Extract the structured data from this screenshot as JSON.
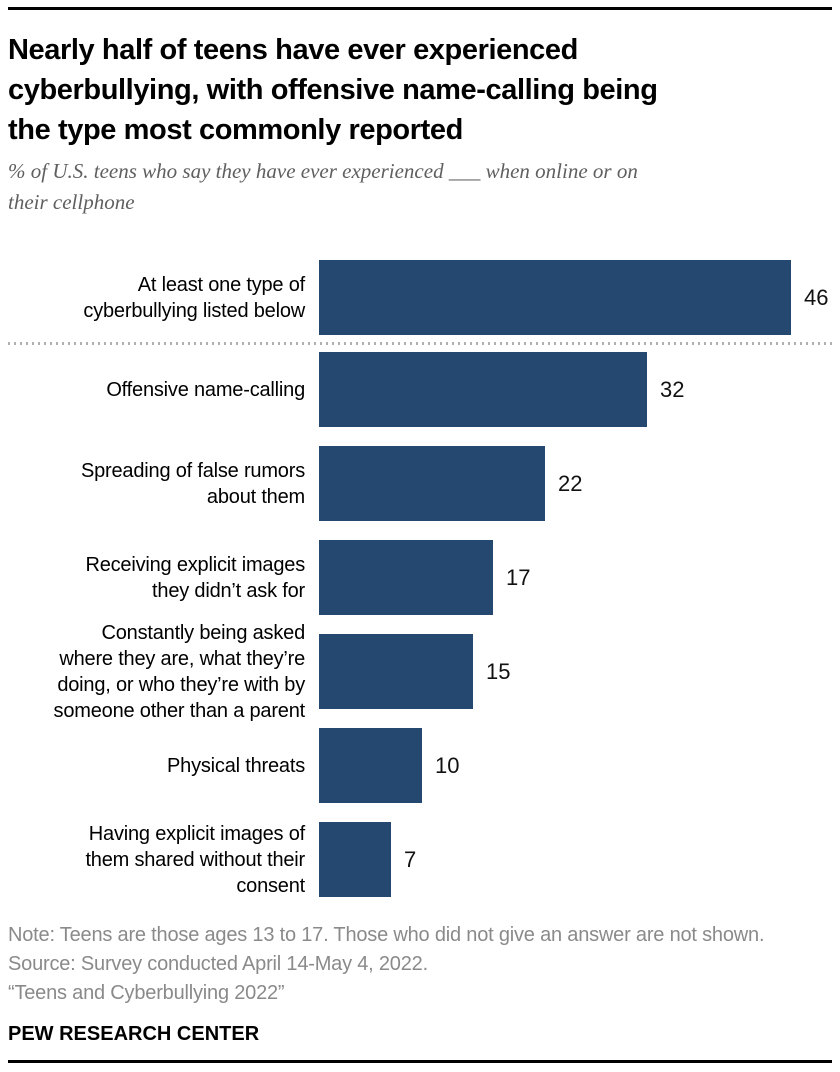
{
  "header": {
    "title": "Nearly half of teens have ever experienced\ncyberbullying, with offensive name-calling being\nthe type most commonly reported",
    "subtitle": "% of U.S. teens who say they have ever experienced ___ when online or on\ntheir cellphone"
  },
  "chart_data": {
    "type": "bar",
    "orientation": "horizontal",
    "title": "Nearly half of teens have ever experienced cyberbullying, with offensive name-calling being the type most commonly reported",
    "subtitle": "% of U.S. teens who say they have ever experienced ___ when online or on their cellphone",
    "categories": [
      "At least one type of\ncyberbullying listed below",
      "Offensive name-calling",
      "Spreading of false rumors\nabout them",
      "Receiving explicit images\nthey didn’t ask for",
      "Constantly being asked\nwhere they are, what they’re\ndoing, or who they’re with by\nsomeone other than a parent",
      "Physical threats",
      "Having explicit images of\nthem shared without their\nconsent"
    ],
    "values": [
      46,
      32,
      22,
      17,
      15,
      10,
      7
    ],
    "value_labels": [
      "46",
      "32",
      "22",
      "17",
      "15",
      "10",
      "7"
    ],
    "xlabel": "",
    "ylabel": "",
    "xlim": [
      0,
      50
    ],
    "grid": false,
    "legend": false,
    "bar_color": "#254871",
    "separator_after_index": 0,
    "separator_style": "dotted"
  },
  "footer": {
    "note": "Note: Teens are those ages 13 to 17. Those who did not give an answer are not shown.",
    "source": "Source: Survey conducted April 14-May 4, 2022.",
    "citation": "“Teens and Cyberbullying 2022”",
    "brand": "PEW RESEARCH CENTER"
  }
}
